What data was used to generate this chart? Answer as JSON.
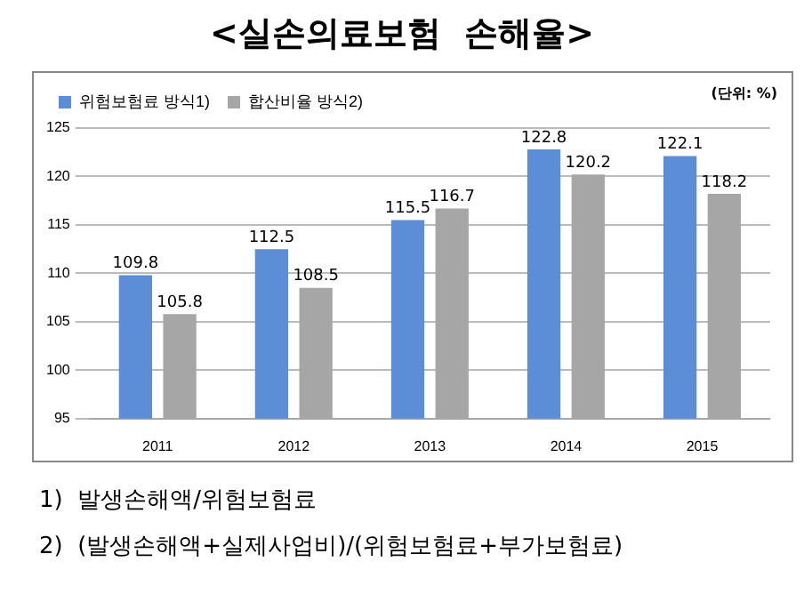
{
  "chart_data": {
    "type": "bar",
    "title": "<실손의료보험  손해율>",
    "categories": [
      "2011",
      "2012",
      "2013",
      "2014",
      "2015"
    ],
    "series": [
      {
        "name": "위험보험료 방식1)",
        "color": "#5b8ed6",
        "values": [
          109.8,
          112.5,
          115.5,
          122.8,
          122.1
        ]
      },
      {
        "name": "합산비율 방식2)",
        "color": "#a6a6a6",
        "values": [
          105.8,
          108.5,
          116.7,
          120.2,
          118.2
        ]
      }
    ],
    "ylim": [
      95,
      125
    ],
    "yticks": [
      95,
      100,
      105,
      110,
      115,
      120,
      125
    ],
    "grid": "y",
    "legend": "top left",
    "data_labels": true,
    "annotations": [
      "(단위: %)",
      "1)  발생손해액/위험보험료",
      "2)  (발생손해액+실제사업비)/(위험보험료+부가보험료)"
    ]
  }
}
